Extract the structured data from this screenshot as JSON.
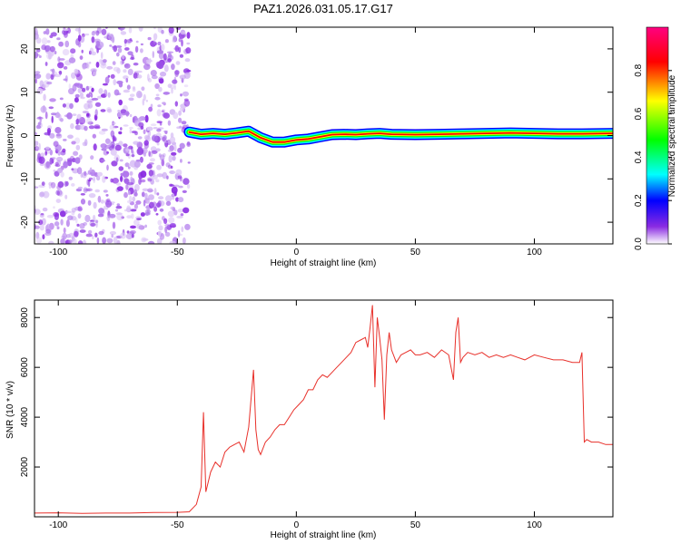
{
  "title": "PAZ1.2026.031.05.17.G17",
  "chart_data": [
    {
      "type": "heatmap",
      "xlabel": "Height of straight line (km)",
      "ylabel": "Frequency (Hz)",
      "xlim": [
        -110,
        133
      ],
      "ylim": [
        -25,
        25
      ],
      "xticks": [
        -100,
        -50,
        0,
        50,
        100
      ],
      "yticks": [
        -20,
        -10,
        0,
        10,
        20
      ],
      "colorbar": {
        "label": "Normalized spectral amplitude",
        "range": [
          0,
          1
        ],
        "ticks": [
          "0.0",
          "0.2",
          "0.4",
          "0.6",
          "0.8"
        ],
        "tick_values": [
          0,
          0.2,
          0.4,
          0.6,
          0.8
        ],
        "colormap": [
          "#ffffff",
          "#8a2be2",
          "#0000ff",
          "#00ffff",
          "#00ff00",
          "#ffff00",
          "#ff0000",
          "#ff0080"
        ]
      },
      "ridge": {
        "x": [
          -45,
          -40,
          -35,
          -30,
          -25,
          -20,
          -15,
          -10,
          -5,
          0,
          5,
          10,
          15,
          20,
          25,
          30,
          35,
          40,
          50,
          60,
          70,
          80,
          90,
          100,
          110,
          120,
          133
        ],
        "y": [
          0.8,
          0.3,
          0.5,
          0.3,
          0.6,
          1.0,
          -0.5,
          -1.5,
          -1.5,
          -1.0,
          -0.8,
          -0.3,
          0.2,
          0.3,
          0.2,
          0.4,
          0.5,
          0.3,
          0.2,
          0.3,
          0.4,
          0.5,
          0.6,
          0.5,
          0.4,
          0.4,
          0.5
        ]
      }
    },
    {
      "type": "line",
      "xlabel": "Height of straight line (km)",
      "ylabel": "SNR (10 * v/v)",
      "xlim": [
        -110,
        133
      ],
      "ylim": [
        0,
        8700
      ],
      "xticks": [
        -100,
        -50,
        0,
        50,
        100
      ],
      "yticks": [
        2000,
        4000,
        6000,
        8000
      ],
      "color": "#e8302a",
      "series": [
        {
          "x": [
            -110,
            -100,
            -90,
            -80,
            -70,
            -60,
            -50,
            -45,
            -42,
            -40,
            -39,
            -38,
            -36,
            -34,
            -32,
            -30,
            -28,
            -26,
            -24,
            -22,
            -20,
            -18,
            -17,
            -16,
            -15,
            -13,
            -11,
            -9,
            -7,
            -5,
            -3,
            -1,
            1,
            3,
            5,
            7,
            9,
            11,
            13,
            15,
            17,
            19,
            21,
            23,
            25,
            27,
            29,
            30,
            31,
            32,
            33,
            34,
            35,
            36,
            37,
            38,
            39,
            40,
            42,
            44,
            46,
            48,
            50,
            52,
            55,
            58,
            61,
            64,
            66,
            67,
            68,
            69,
            70,
            72,
            75,
            78,
            81,
            84,
            87,
            90,
            93,
            96,
            100,
            104,
            108,
            112,
            116,
            119,
            120,
            121,
            122,
            124,
            127,
            130,
            133
          ],
          "y": [
            150,
            160,
            140,
            150,
            150,
            170,
            180,
            200,
            500,
            1200,
            4200,
            1000,
            1800,
            2200,
            2000,
            2600,
            2800,
            2900,
            3000,
            2600,
            3600,
            5900,
            3500,
            2700,
            2500,
            3000,
            3200,
            3500,
            3700,
            3700,
            4000,
            4300,
            4500,
            4700,
            5100,
            5100,
            5500,
            5700,
            5600,
            5800,
            6000,
            6200,
            6400,
            6600,
            7000,
            7100,
            7200,
            6800,
            7600,
            8500,
            5200,
            8000,
            7200,
            6300,
            3900,
            6500,
            7400,
            6700,
            6200,
            6500,
            6600,
            6700,
            6500,
            6500,
            6600,
            6400,
            6700,
            6500,
            5500,
            7400,
            8000,
            6200,
            6400,
            6600,
            6500,
            6600,
            6400,
            6500,
            6400,
            6500,
            6400,
            6300,
            6500,
            6400,
            6300,
            6300,
            6200,
            6200,
            6600,
            3000,
            3100,
            3000,
            3000,
            2900,
            2900
          ]
        }
      ]
    }
  ]
}
